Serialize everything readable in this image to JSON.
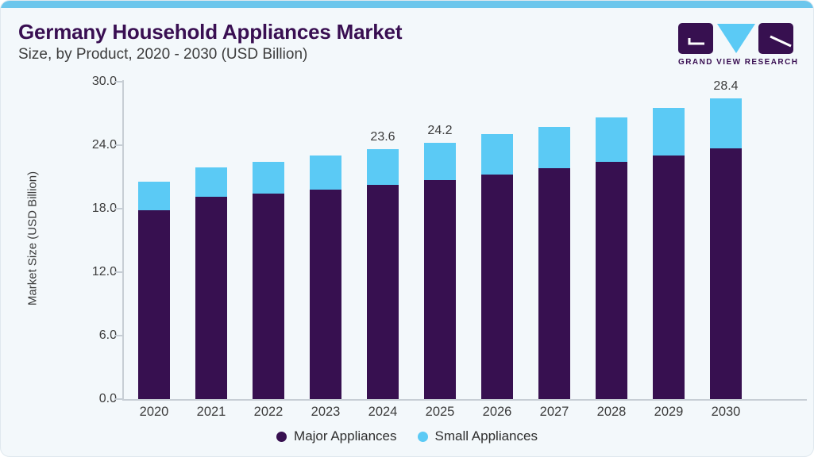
{
  "header": {
    "title": "Germany Household Appliances Market",
    "subtitle": "Size, by Product, 2020 - 2030 (USD Billion)"
  },
  "logo": {
    "text": "GRAND VIEW RESEARCH"
  },
  "colors": {
    "background": "#f3f8fb",
    "top_strip": "#6cc6ec",
    "brand_purple": "#390f52",
    "major_appliances": "#371050",
    "small_appliances": "#5bcaf5",
    "axis": "#c7ced5",
    "text_gray": "#3b3b3b"
  },
  "chart_data": {
    "type": "bar",
    "stacked": true,
    "title": "Germany Household Appliances Market Size, by Product, 2020 - 2030 (USD Billion)",
    "categories": [
      "2020",
      "2021",
      "2022",
      "2023",
      "2024",
      "2025",
      "2026",
      "2027",
      "2028",
      "2029",
      "2030"
    ],
    "series": [
      {
        "name": "Major Appliances",
        "color": "#371050",
        "values": [
          17.8,
          19.1,
          19.4,
          19.8,
          20.2,
          20.7,
          21.2,
          21.8,
          22.4,
          23.0,
          23.7
        ]
      },
      {
        "name": "Small Appliances",
        "color": "#5bcaf5",
        "values": [
          2.7,
          2.8,
          3.0,
          3.2,
          3.4,
          3.5,
          3.8,
          3.9,
          4.2,
          4.5,
          4.7
        ]
      }
    ],
    "totals": [
      20.5,
      21.9,
      22.4,
      23.0,
      23.6,
      24.2,
      25.0,
      25.7,
      26.6,
      27.5,
      28.4
    ],
    "total_labels": {
      "2024": "23.6",
      "2025": "24.2",
      "2030": "28.4"
    },
    "ylabel": "Market Size (USD Billion)",
    "yticks": [
      "0.0",
      "6.0",
      "12.0",
      "18.0",
      "24.0",
      "30.0"
    ],
    "ylim": [
      0,
      30
    ],
    "grid": false,
    "legend_position": "bottom"
  }
}
